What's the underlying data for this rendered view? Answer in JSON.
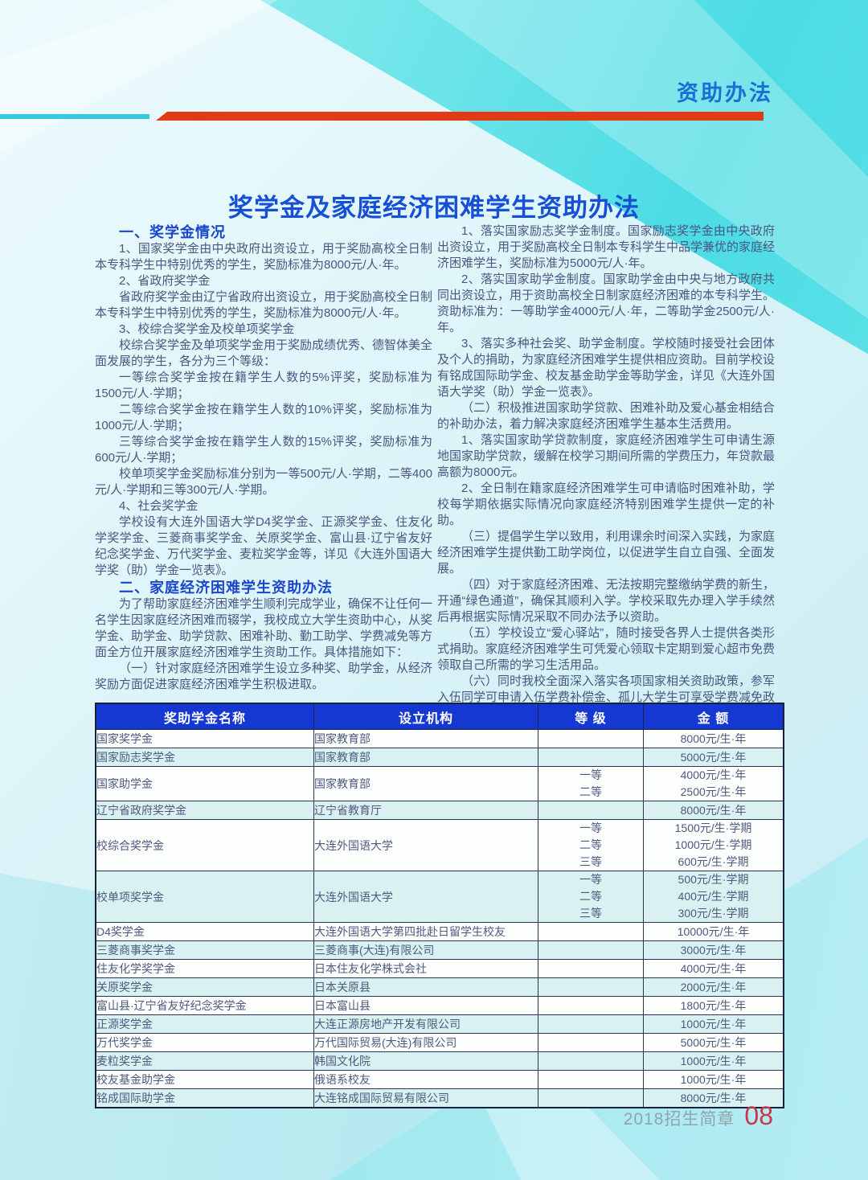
{
  "page": {
    "header_label": "资助办法",
    "title": "奖学金及家庭经济困难学生资助办法",
    "footer": {
      "brochure": "2018招生简章",
      "page_number": "08"
    }
  },
  "colors": {
    "accent_red_bar": "#e13a14",
    "accent_cyan_bar": "#35cadd",
    "header_label_blue": "#1a6fd2",
    "title_blue": "#1750d6",
    "section_heading_blue": "#1b46cc",
    "body_text": "#4a5680",
    "table_header_blue": "#1537d2",
    "table_alt_row": "#d9f2f1",
    "page_number_red": "#cf3545",
    "background_turquoise": "#4cdce4"
  },
  "left_column": {
    "sections": [
      {
        "heading": "一、奖学金情况",
        "paragraphs": [
          "1、国家奖学金由中央政府出资设立，用于奖励高校全日制本专科学生中特别优秀的学生，奖励标准为8000元/人·年。",
          "2、省政府奖学金",
          "省政府奖学金由辽宁省政府出资设立，用于奖励高校全日制本专科学生中特别优秀的学生，奖励标准为8000元/人·年。",
          "3、校综合奖学金及校单项奖学金",
          "校综合奖学金及单项奖学金用于奖励成绩优秀、德智体美全面发展的学生，各分为三个等级：",
          "一等综合奖学金按在籍学生人数的5%评奖，奖励标准为1500元/人·学期；",
          "二等综合奖学金按在籍学生人数的10%评奖，奖励标准为1000元/人·学期；",
          "三等综合奖学金按在籍学生人数的15%评奖，奖励标准为600元/人·学期；",
          "校单项奖学金奖励标准分别为一等500元/人·学期，二等400元/人·学期和三等300元/人·学期。",
          "4、社会奖学金",
          "学校设有大连外国语大学D4奖学金、正源奖学金、住友化学奖学金、三菱商事奖学金、关原奖学金、富山县·辽宁省友好纪念奖学金、万代奖学金、麦粒奖学金等，详见《大连外国语大学奖（助）学金一览表》。"
        ]
      },
      {
        "heading": "二、家庭经济困难学生资助办法",
        "paragraphs": [
          "为了帮助家庭经济困难学生顺利完成学业，确保不让任何一名学生因家庭经济困难而辍学，我校成立大学生资助中心，从奖学金、助学金、助学贷款、困难补助、勤工助学、学费减免等方面全方位开展家庭经济困难学生资助工作。具体措施如下：",
          "（一）针对家庭经济困难学生设立多种奖、助学金，从经济奖励方面促进家庭经济困难学生积极进取。"
        ]
      }
    ]
  },
  "right_column": {
    "paragraphs": [
      "1、落实国家励志奖学金制度。国家励志奖学金由中央政府出资设立，用于奖励高校全日制本专科学生中品学兼优的家庭经济困难学生，奖励标准为5000元/人·年。",
      "2、落实国家助学金制度。国家助学金由中央与地方政府共同出资设立，用于资助高校全日制家庭经济困难的本专科学生。资助标准为：一等助学金4000元/人·年，二等助学金2500元/人·年。",
      "3、落实多种社会奖、助学金制度。学校随时接受社会团体及个人的捐助，为家庭经济困难学生提供相应资助。目前学校设有铭成国际助学金、校友基金助学金等助学金，详见《大连外国语大学奖（助）学金一览表》。",
      "（二）积极推进国家助学贷款、困难补助及爱心基金相结合的补助办法，着力解决家庭经济困难学生基本生活费用。",
      "1、落实国家助学贷款制度，家庭经济困难学生可申请生源地国家助学贷款，缓解在校学习期间所需的学费压力，年贷款最高额为8000元。",
      "2、全日制在籍家庭经济困难学生可申请临时困难补助，学校每学期依据实际情况向家庭经济特别困难学生提供一定的补助。",
      "（三）提倡学生学以致用，利用课余时间深入实践，为家庭经济困难学生提供勤工助学岗位，以促进学生自立自强、全面发展。",
      "（四）对于家庭经济困难、无法按期完整缴纳学费的新生，开通“绿色通道”，确保其顺利入学。学校采取先办理入学手续然后再根据实际情况采取不同办法予以资助。",
      "（五）学校设立“爱心驿站”，随时接受各界人士提供各类形式捐助。家庭经济困难学生可凭爱心领取卡定期到爱心超市免费领取自己所需的学习生活用品。",
      "（六）同时我校全面深入落实各项国家相关资助政策，参军入伍同学可申请入伍学费补偿金、孤儿大学生可享受学费减免政策、新疆籍少数民族学生可申请新疆籍少数民族贫困学生资助金等。"
    ]
  },
  "table": {
    "headers": [
      "奖助学金名称",
      "设立机构",
      "等 级",
      "金 额"
    ],
    "rows": [
      {
        "name": "国家奖学金",
        "org": "国家教育部",
        "levels": [
          ""
        ],
        "amounts": [
          "8000元/生·年"
        ]
      },
      {
        "name": "国家励志奖学金",
        "org": "国家教育部",
        "levels": [
          ""
        ],
        "amounts": [
          "5000元/生·年"
        ]
      },
      {
        "name": "国家助学金",
        "org": "国家教育部",
        "levels": [
          "一等",
          "二等"
        ],
        "amounts": [
          "4000元/生·年",
          "2500元/生·年"
        ]
      },
      {
        "name": "辽宁省政府奖学金",
        "org": "辽宁省教育厅",
        "levels": [
          ""
        ],
        "amounts": [
          "8000元/生·年"
        ]
      },
      {
        "name": "校综合奖学金",
        "org": "大连外国语大学",
        "levels": [
          "一等",
          "二等",
          "三等"
        ],
        "amounts": [
          "1500元/生·学期",
          "1000元/生·学期",
          "600元/生·学期"
        ]
      },
      {
        "name": "校单项奖学金",
        "org": "大连外国语大学",
        "levels": [
          "一等",
          "二等",
          "三等"
        ],
        "amounts": [
          "500元/生·学期",
          "400元/生·学期",
          "300元/生·学期"
        ]
      },
      {
        "name": "D4奖学金",
        "org": "大连外国语大学第四批赴日留学生校友",
        "levels": [
          ""
        ],
        "amounts": [
          "10000元/生·年"
        ]
      },
      {
        "name": "三菱商事奖学金",
        "org": "三菱商事(大连)有限公司",
        "levels": [
          ""
        ],
        "amounts": [
          "3000元/生·年"
        ]
      },
      {
        "name": "住友化学奖学金",
        "org": "日本住友化学株式会社",
        "levels": [
          ""
        ],
        "amounts": [
          "4000元/生·年"
        ]
      },
      {
        "name": "关原奖学金",
        "org": "日本关原县",
        "levels": [
          ""
        ],
        "amounts": [
          "2000元/生·年"
        ]
      },
      {
        "name": "富山县·辽宁省友好纪念奖学金",
        "org": "日本富山县",
        "levels": [
          ""
        ],
        "amounts": [
          "1800元/生·年"
        ]
      },
      {
        "name": "正源奖学金",
        "org": "大连正源房地产开发有限公司",
        "levels": [
          ""
        ],
        "amounts": [
          "1000元/生·年"
        ]
      },
      {
        "name": "万代奖学金",
        "org": "万代国际贸易(大连)有限公司",
        "levels": [
          ""
        ],
        "amounts": [
          "5000元/生·年"
        ]
      },
      {
        "name": "麦粒奖学金",
        "org": "韩国文化院",
        "levels": [
          ""
        ],
        "amounts": [
          "1000元/生·年"
        ]
      },
      {
        "name": "校友基金助学金",
        "org": "俄语系校友",
        "levels": [
          ""
        ],
        "amounts": [
          "1000元/生·年"
        ]
      },
      {
        "name": "铭成国际助学金",
        "org": "大连铭成国际贸易有限公司",
        "levels": [
          ""
        ],
        "amounts": [
          "8000元/生·年"
        ]
      }
    ]
  }
}
